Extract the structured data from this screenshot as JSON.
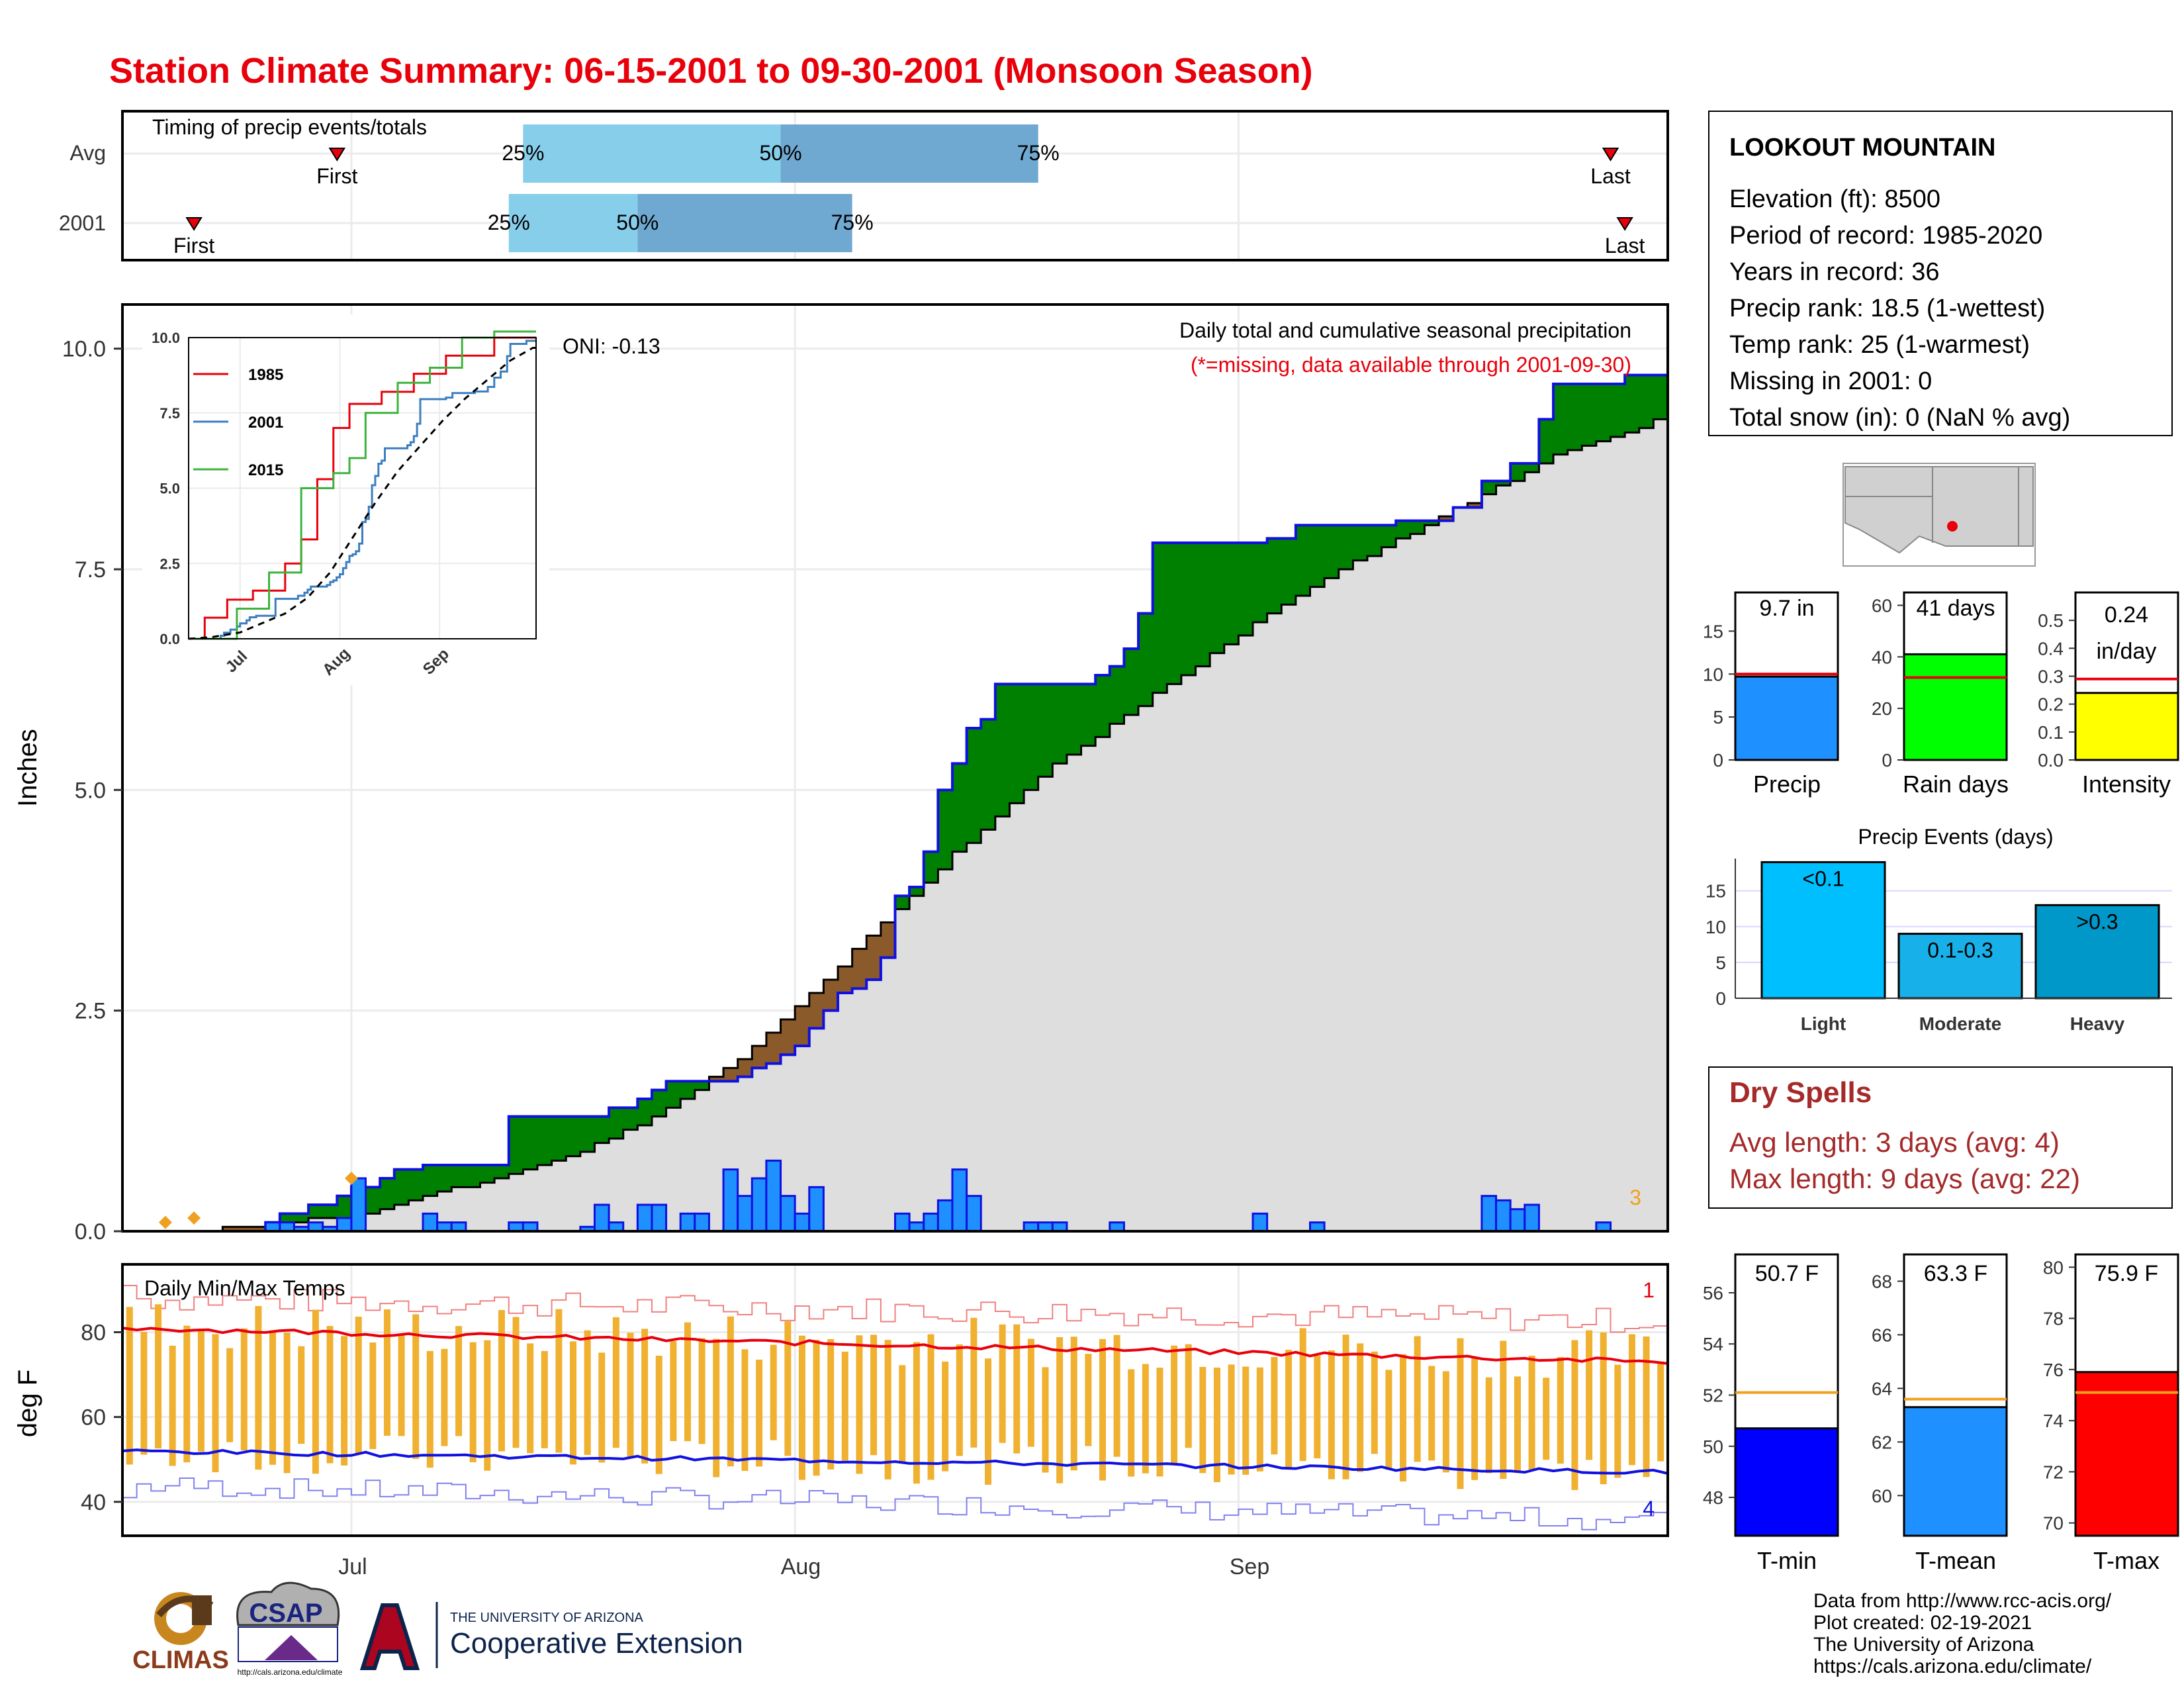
{
  "page_title": "Station Climate Summary: 06-15-2001 to 09-30-2001 (Monsoon Season)",
  "colors": {
    "title": "#e8000b",
    "precip_bar": "#1e90ff",
    "green": "#008000",
    "gray": "#dedede",
    "temp_band": "#f0b030",
    "tmax_avg": "#e8000b",
    "tmin_avg": "#1010e0",
    "dry_spells": "#a52a2a",
    "light": "#00bfff",
    "moderate": "#18b0e8",
    "heavy": "#0098c8",
    "rain_days": "#00ff00",
    "intensity": "#ffff00"
  },
  "timing": {
    "title": "Timing of precip events/totals",
    "rows": [
      {
        "label": "Avg",
        "first_label": "First",
        "last_label": "Last",
        "q25": "25%",
        "q50": "50%",
        "q75": "75%",
        "first_date": "2001-06-30",
        "last_date": "2001-09-27",
        "q25_date": "2001-07-13",
        "q50_date": "2001-07-31",
        "q75_date": "2001-08-18"
      },
      {
        "label": "2001",
        "first_label": "First",
        "last_label": "Last",
        "q25": "25%",
        "q50": "50%",
        "q75": "75%",
        "first_date": "2001-06-20",
        "last_date": "2001-09-28",
        "q25_date": "2001-07-12",
        "q50_date": "2001-07-21",
        "q75_date": "2001-08-05"
      }
    ]
  },
  "station": {
    "name": "LOOKOUT MOUNTAIN",
    "lines": [
      "Elevation (ft): 8500",
      "Period of record: 1985-2020",
      "Years in record: 36",
      "Precip rank: 18.5 (1-wettest)",
      "Temp rank: 25 (1-warmest)",
      "Missing in 2001: 0",
      "Total snow (in): 0 (NaN % avg)"
    ]
  },
  "main": {
    "ylabel": "Inches",
    "oni": "ONI: -0.13",
    "header": "Daily total and cumulative seasonal precipitation",
    "subheader": "(*=missing, data available through 2001-09-30)",
    "corner_count": "3"
  },
  "temps": {
    "title": "Daily Min/Max Temps",
    "ylabel": "deg F",
    "record_high_count": "1",
    "record_low_count": "4"
  },
  "months": [
    "Jul",
    "Aug",
    "Sep"
  ],
  "summary_bars": {
    "precip": {
      "label": "Precip",
      "value_label": "9.7 in"
    },
    "rain_days": {
      "label": "Rain days",
      "value_label": "41 days"
    },
    "intensity": {
      "label": "Intensity",
      "value_label_1": "0.24",
      "value_label_2": "in/day"
    }
  },
  "events": {
    "title": "Precip Events (days)",
    "bars": [
      {
        "cat": "Light",
        "label": "<0.1"
      },
      {
        "cat": "Moderate",
        "label": "0.1-0.3"
      },
      {
        "cat": "Heavy",
        "label": ">0.3"
      }
    ]
  },
  "dry_spells": {
    "title": "Dry Spells",
    "avg": "Avg length: 3 days (avg: 4)",
    "max": "Max length: 9 days (avg: 22)"
  },
  "temp_bars": {
    "tmin": {
      "label": "T-min",
      "value_label": "50.7 F"
    },
    "tmean": {
      "label": "T-mean",
      "value_label": "63.3 F"
    },
    "tmax": {
      "label": "T-max",
      "value_label": "75.9 F"
    }
  },
  "footer": [
    "Data from http://www.rcc-acis.org/",
    "Plot created: 02-19-2021",
    "The University of Arizona",
    "https://cals.arizona.edu/climate/"
  ],
  "logos": {
    "climas": "CLIMAS",
    "csap": "CSAP",
    "csap_url": "http://cals.arizona.edu/climate",
    "ua_line1": "THE UNIVERSITY OF ARIZONA",
    "ua_line2": "Cooperative Extension"
  },
  "chart_data": [
    {
      "type": "area",
      "title": "Daily total and cumulative seasonal precipitation",
      "ylabel": "Inches",
      "ylim": [
        0,
        10.5
      ],
      "x_range": [
        "2001-06-15",
        "2001-09-30"
      ],
      "x_ticks": [
        "Jul",
        "Aug",
        "Sep"
      ],
      "y_ticks": [
        0.0,
        2.5,
        5.0,
        7.5,
        10.0
      ],
      "daily_precip": [
        {
          "date": "2001-06-25",
          "v": 0.1
        },
        {
          "date": "2001-06-26",
          "v": 0.1
        },
        {
          "date": "2001-06-27",
          "v": 0.05
        },
        {
          "date": "2001-06-28",
          "v": 0.1
        },
        {
          "date": "2001-06-29",
          "v": 0.05
        },
        {
          "date": "2001-06-30",
          "v": 0.15
        },
        {
          "date": "2001-07-01",
          "v": 0.6
        },
        {
          "date": "2001-07-06",
          "v": 0.2
        },
        {
          "date": "2001-07-07",
          "v": 0.1
        },
        {
          "date": "2001-07-08",
          "v": 0.1
        },
        {
          "date": "2001-07-12",
          "v": 0.1
        },
        {
          "date": "2001-07-13",
          "v": 0.1
        },
        {
          "date": "2001-07-17",
          "v": 0.05
        },
        {
          "date": "2001-07-18",
          "v": 0.3
        },
        {
          "date": "2001-07-19",
          "v": 0.1
        },
        {
          "date": "2001-07-21",
          "v": 0.3
        },
        {
          "date": "2001-07-22",
          "v": 0.3
        },
        {
          "date": "2001-07-24",
          "v": 0.2
        },
        {
          "date": "2001-07-25",
          "v": 0.2
        },
        {
          "date": "2001-07-27",
          "v": 0.7
        },
        {
          "date": "2001-07-28",
          "v": 0.4
        },
        {
          "date": "2001-07-29",
          "v": 0.6
        },
        {
          "date": "2001-07-30",
          "v": 0.8
        },
        {
          "date": "2001-07-31",
          "v": 0.4
        },
        {
          "date": "2001-08-01",
          "v": 0.2
        },
        {
          "date": "2001-08-02",
          "v": 0.5
        },
        {
          "date": "2001-08-08",
          "v": 0.2
        },
        {
          "date": "2001-08-09",
          "v": 0.1
        },
        {
          "date": "2001-08-10",
          "v": 0.2
        },
        {
          "date": "2001-08-11",
          "v": 0.35
        },
        {
          "date": "2001-08-12",
          "v": 0.7
        },
        {
          "date": "2001-08-13",
          "v": 0.4
        },
        {
          "date": "2001-08-17",
          "v": 0.1
        },
        {
          "date": "2001-08-18",
          "v": 0.1
        },
        {
          "date": "2001-08-19",
          "v": 0.1
        },
        {
          "date": "2001-08-23",
          "v": 0.1
        },
        {
          "date": "2001-09-02",
          "v": 0.2
        },
        {
          "date": "2001-09-06",
          "v": 0.1
        },
        {
          "date": "2001-09-18",
          "v": 0.4
        },
        {
          "date": "2001-09-19",
          "v": 0.35
        },
        {
          "date": "2001-09-20",
          "v": 0.25
        },
        {
          "date": "2001-09-21",
          "v": 0.3
        },
        {
          "date": "2001-09-26",
          "v": 0.1
        }
      ],
      "cumulative_2001": [
        {
          "date": "2001-06-15",
          "v": 0.0
        },
        {
          "date": "2001-06-25",
          "v": 0.1
        },
        {
          "date": "2001-06-26",
          "v": 0.2
        },
        {
          "date": "2001-06-28",
          "v": 0.3
        },
        {
          "date": "2001-06-30",
          "v": 0.4
        },
        {
          "date": "2001-07-01",
          "v": 0.5
        },
        {
          "date": "2001-07-03",
          "v": 0.6
        },
        {
          "date": "2001-07-04",
          "v": 0.7
        },
        {
          "date": "2001-07-06",
          "v": 0.75
        },
        {
          "date": "2001-07-08",
          "v": 0.75
        },
        {
          "date": "2001-07-11",
          "v": 0.75
        },
        {
          "date": "2001-07-12",
          "v": 1.3
        },
        {
          "date": "2001-07-18",
          "v": 1.3
        },
        {
          "date": "2001-07-19",
          "v": 1.4
        },
        {
          "date": "2001-07-21",
          "v": 1.5
        },
        {
          "date": "2001-07-22",
          "v": 1.6
        },
        {
          "date": "2001-07-23",
          "v": 1.7
        },
        {
          "date": "2001-07-28",
          "v": 1.75
        },
        {
          "date": "2001-07-29",
          "v": 1.85
        },
        {
          "date": "2001-07-30",
          "v": 1.9
        },
        {
          "date": "2001-07-31",
          "v": 2.0
        },
        {
          "date": "2001-08-01",
          "v": 2.1
        },
        {
          "date": "2001-08-02",
          "v": 2.3
        },
        {
          "date": "2001-08-03",
          "v": 2.5
        },
        {
          "date": "2001-08-04",
          "v": 2.7
        },
        {
          "date": "2001-08-05",
          "v": 2.75
        },
        {
          "date": "2001-08-06",
          "v": 2.85
        },
        {
          "date": "2001-08-07",
          "v": 3.1
        },
        {
          "date": "2001-08-08",
          "v": 3.8
        },
        {
          "date": "2001-08-09",
          "v": 3.9
        },
        {
          "date": "2001-08-10",
          "v": 4.3
        },
        {
          "date": "2001-08-11",
          "v": 5.0
        },
        {
          "date": "2001-08-12",
          "v": 5.3
        },
        {
          "date": "2001-08-13",
          "v": 5.7
        },
        {
          "date": "2001-08-14",
          "v": 5.8
        },
        {
          "date": "2001-08-15",
          "v": 6.2
        },
        {
          "date": "2001-08-21",
          "v": 6.2
        },
        {
          "date": "2001-08-22",
          "v": 6.3
        },
        {
          "date": "2001-08-23",
          "v": 6.4
        },
        {
          "date": "2001-08-24",
          "v": 6.6
        },
        {
          "date": "2001-08-25",
          "v": 7.0
        },
        {
          "date": "2001-08-26",
          "v": 7.8
        },
        {
          "date": "2001-09-03",
          "v": 7.85
        },
        {
          "date": "2001-09-05",
          "v": 8.0
        },
        {
          "date": "2001-09-12",
          "v": 8.05
        },
        {
          "date": "2001-09-16",
          "v": 8.2
        },
        {
          "date": "2001-09-18",
          "v": 8.5
        },
        {
          "date": "2001-09-20",
          "v": 8.7
        },
        {
          "date": "2001-09-22",
          "v": 9.2
        },
        {
          "date": "2001-09-23",
          "v": 9.6
        },
        {
          "date": "2001-09-27",
          "v": 9.6
        },
        {
          "date": "2001-09-28",
          "v": 9.7
        },
        {
          "date": "2001-09-30",
          "v": 9.7
        }
      ],
      "cumulative_avg": [
        {
          "date": "2001-06-15",
          "v": 0.0
        },
        {
          "date": "2001-06-22",
          "v": 0.05
        },
        {
          "date": "2001-07-01",
          "v": 0.2
        },
        {
          "date": "2001-07-08",
          "v": 0.5
        },
        {
          "date": "2001-07-15",
          "v": 0.8
        },
        {
          "date": "2001-07-22",
          "v": 1.3
        },
        {
          "date": "2001-07-29",
          "v": 2.1
        },
        {
          "date": "2001-08-05",
          "v": 3.2
        },
        {
          "date": "2001-08-12",
          "v": 4.3
        },
        {
          "date": "2001-08-19",
          "v": 5.3
        },
        {
          "date": "2001-08-26",
          "v": 6.1
        },
        {
          "date": "2001-09-02",
          "v": 6.9
        },
        {
          "date": "2001-09-09",
          "v": 7.6
        },
        {
          "date": "2001-09-16",
          "v": 8.2
        },
        {
          "date": "2001-09-23",
          "v": 8.8
        },
        {
          "date": "2001-09-30",
          "v": 9.2
        }
      ]
    },
    {
      "type": "line",
      "title": "",
      "series": [
        {
          "name": "1985"
        },
        {
          "name": "2001"
        },
        {
          "name": "2015"
        }
      ],
      "ylim": [
        0,
        10
      ],
      "y_ticks": [
        "0.0",
        "2.5",
        "5.0",
        "7.5",
        "10.0"
      ],
      "x_ticks": [
        "Jul",
        "Aug",
        "Sep"
      ]
    },
    {
      "type": "line",
      "title": "Daily Min/Max Temps",
      "ylabel": "deg F",
      "ylim": [
        32,
        96
      ],
      "y_ticks": [
        40,
        60,
        80
      ],
      "tmax_avg_start": 81,
      "tmax_avg_end": 73,
      "tmin_avg_start": 52,
      "tmin_avg_end": 47
    },
    {
      "type": "bar",
      "categories": [
        "Precip",
        "Rain days",
        "Intensity"
      ],
      "values": [
        9.7,
        41,
        0.24
      ],
      "averages": [
        10.0,
        32,
        0.29
      ],
      "ylims": [
        [
          0,
          19.5
        ],
        [
          0,
          65
        ],
        [
          0,
          0.6
        ]
      ],
      "y_ticks": [
        [
          0,
          5,
          10,
          15
        ],
        [
          0,
          20,
          40,
          60
        ],
        [
          0.0,
          0.1,
          0.2,
          0.3,
          0.4,
          0.5
        ]
      ]
    },
    {
      "type": "bar",
      "title": "Precip Events (days)",
      "categories": [
        "Light",
        "Moderate",
        "Heavy"
      ],
      "values": [
        19,
        9,
        13
      ],
      "ylim": [
        0,
        19.5
      ],
      "y_ticks": [
        0,
        5,
        10,
        15
      ]
    },
    {
      "type": "bar",
      "categories": [
        "T-min",
        "T-mean",
        "T-max"
      ],
      "values": [
        50.7,
        63.3,
        75.9
      ],
      "averages": [
        52.1,
        63.6,
        75.1
      ],
      "ylims": [
        [
          46.5,
          57.5
        ],
        [
          58.5,
          69
        ],
        [
          69.5,
          80.5
        ]
      ],
      "y_ticks": [
        [
          48,
          50,
          52,
          54,
          56
        ],
        [
          60,
          62,
          64,
          66,
          68
        ],
        [
          70,
          72,
          74,
          76,
          78,
          80
        ]
      ]
    }
  ]
}
